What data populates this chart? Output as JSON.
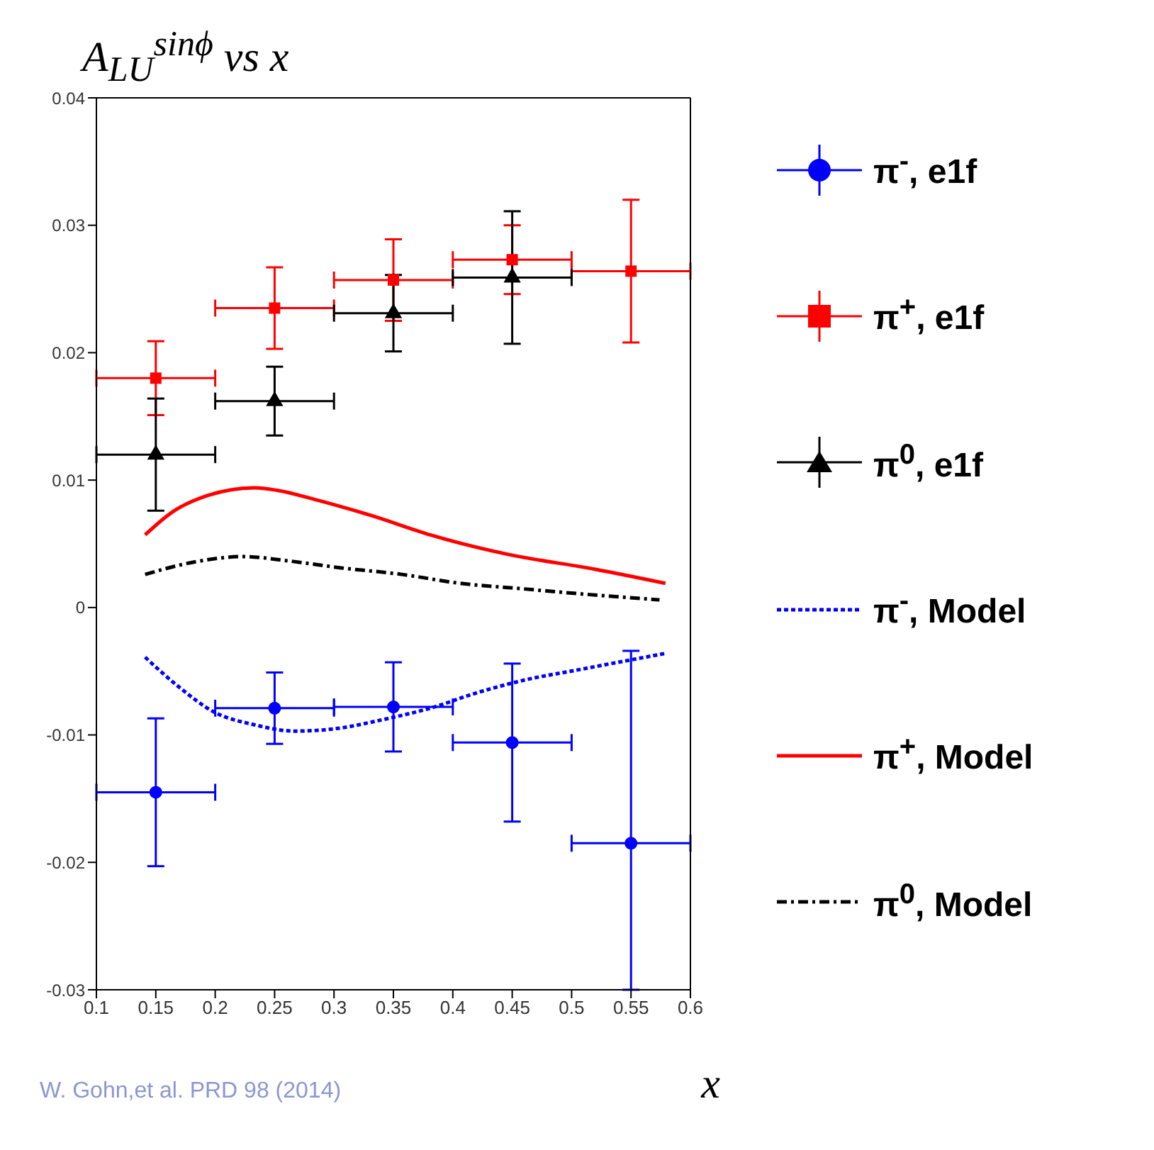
{
  "chart_data": {
    "type": "scatter",
    "title": "A$_{LU}$$^{sinϕ}$ vs x",
    "xlabel": "x",
    "annotations": [
      "W. Gohn,et al. PRD 98 (2014)"
    ],
    "xlim": [
      0.1,
      0.6
    ],
    "xticks": [
      0.1,
      0.15,
      0.2,
      0.25,
      0.3,
      0.35,
      0.4,
      0.45,
      0.5,
      0.55,
      0.6
    ],
    "ylim": [
      -0.03,
      0.04
    ],
    "yticks": [
      -0.03,
      -0.02,
      -0.01,
      0,
      0.01,
      0.02,
      0.03,
      0.04
    ],
    "grid": false,
    "legend": "right",
    "series": [
      {
        "name": "π$^{-}$, e1f",
        "marker": "circle",
        "color": "#0000ff",
        "x": [
          0.15,
          0.25,
          0.35,
          0.45,
          0.55
        ],
        "values": [
          -0.0145,
          -0.0079,
          -0.0078,
          -0.0106,
          -0.0185
        ],
        "errors": [
          0.0058,
          0.0028,
          0.0035,
          0.0062,
          [
            -0.03,
            -0.0034
          ]
        ],
        "xerrors": [
          0.05,
          0.05,
          0.05,
          0.05,
          0.05
        ]
      },
      {
        "name": "π$^{+}$, e1f",
        "marker": "square",
        "color": "#ff0000",
        "x": [
          0.15,
          0.25,
          0.35,
          0.45,
          0.55
        ],
        "values": [
          0.018,
          0.0235,
          0.0257,
          0.0273,
          0.0264
        ],
        "errors": [
          0.0029,
          0.0032,
          0.0032,
          0.0027,
          0.0056
        ],
        "xerrors": [
          0.05,
          0.05,
          0.05,
          0.05,
          0.05
        ]
      },
      {
        "name": "π$^{0}$, e1f",
        "marker": "triangle",
        "color": "#000000",
        "x": [
          0.15,
          0.25,
          0.35,
          0.45
        ],
        "values": [
          0.012,
          0.0162,
          0.0231,
          0.0259
        ],
        "errors": [
          0.0044,
          0.0027,
          0.003,
          0.0052
        ],
        "xerrors": [
          0.05,
          0.05,
          0.05,
          0.05
        ]
      },
      {
        "name": "π$^{-}$, Model",
        "type": "line",
        "marker": "none",
        "line_style": "dotted",
        "color": "#0000ff",
        "x": [
          0.141,
          0.169,
          0.199,
          0.233,
          0.267,
          0.302,
          0.341,
          0.381,
          0.42,
          0.46,
          0.505,
          0.579
        ],
        "values": [
          -0.0039,
          -0.0062,
          -0.0082,
          -0.0092,
          -0.0097,
          -0.0095,
          -0.0088,
          -0.0079,
          -0.0067,
          -0.0057,
          -0.0049,
          -0.0036
        ]
      },
      {
        "name": "π$^{+}$, Model",
        "type": "line",
        "marker": "none",
        "line_style": "solid",
        "color": "#ff0000",
        "x": [
          0.141,
          0.164,
          0.194,
          0.233,
          0.252,
          0.283,
          0.332,
          0.381,
          0.445,
          0.52,
          0.579
        ],
        "values": [
          0.0057,
          0.0075,
          0.0088,
          0.0094,
          0.0092,
          0.0085,
          0.0072,
          0.0057,
          0.0042,
          0.003,
          0.0019
        ]
      },
      {
        "name": "π$^{0}$, Model",
        "type": "line",
        "marker": "none",
        "line_style": "dashed",
        "color": "#000000",
        "x": [
          0.141,
          0.184,
          0.224,
          0.258,
          0.307,
          0.357,
          0.406,
          0.455,
          0.504,
          0.574
        ],
        "values": [
          0.0026,
          0.0036,
          0.004,
          0.0037,
          0.0031,
          0.0026,
          0.0019,
          0.0015,
          0.0011,
          0.0006
        ]
      }
    ]
  }
}
